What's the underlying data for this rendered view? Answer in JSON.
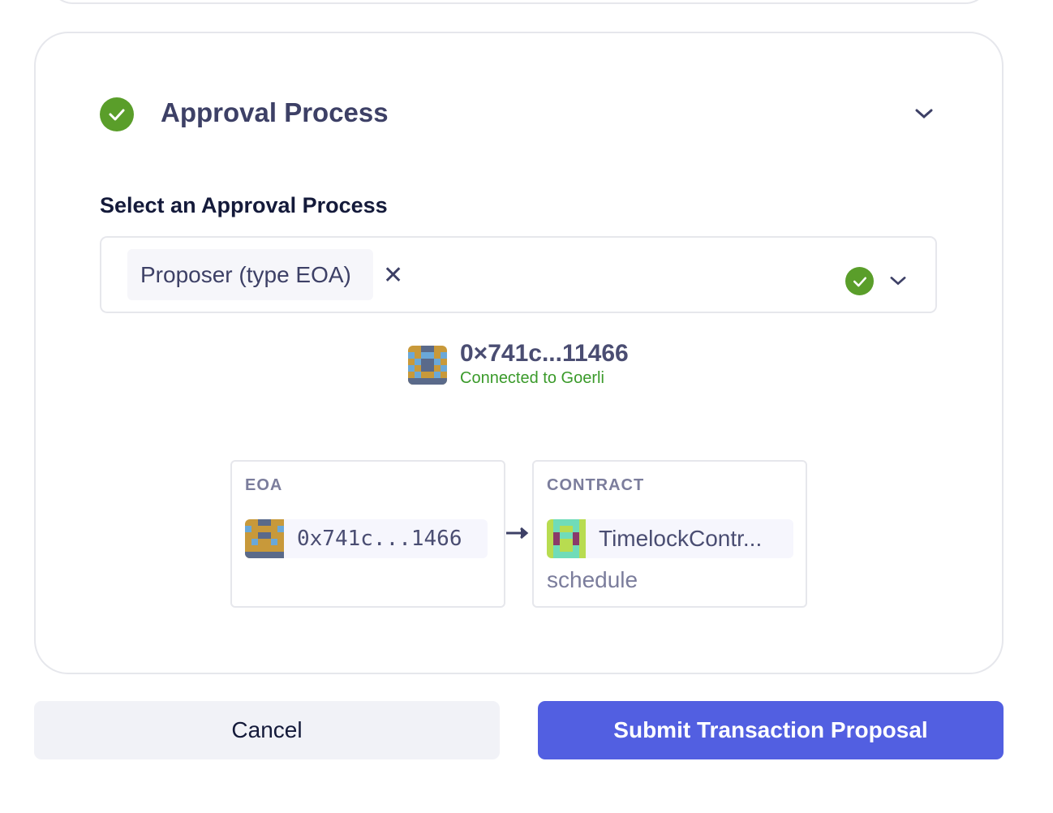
{
  "section": {
    "title": "Approval Process",
    "status_icon": "check-circle-icon",
    "status_color": "#5a9e2a"
  },
  "select": {
    "label": "Select an Approval Process",
    "selected": "Proposer (type EOA)"
  },
  "account": {
    "address": "0×741c...11466",
    "network_status": "Connected to Goerli"
  },
  "flow": {
    "eoa": {
      "label": "EOA",
      "address": "0x741c...1466"
    },
    "contract": {
      "label": "CONTRACT",
      "name": "TimelockContr...",
      "function": "schedule"
    }
  },
  "actions": {
    "cancel": "Cancel",
    "submit": "Submit Transaction Proposal",
    "submit_color": "#525fe1"
  }
}
